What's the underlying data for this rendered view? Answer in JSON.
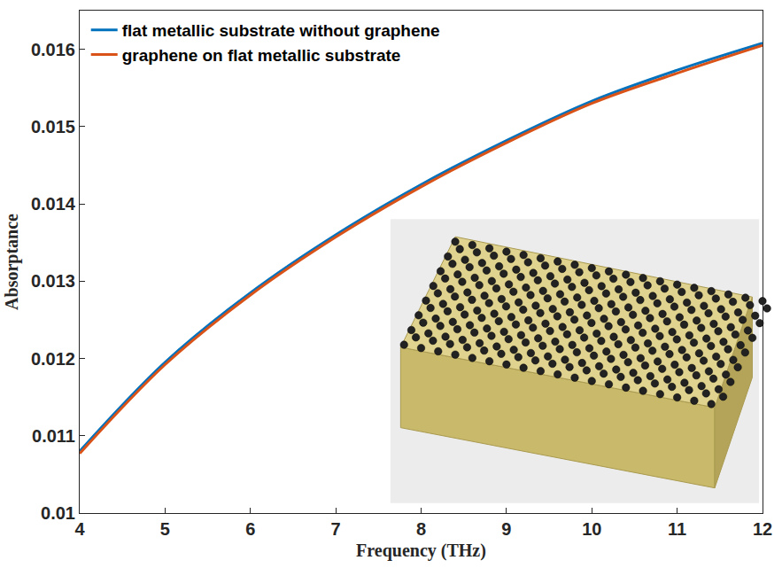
{
  "chart_data": {
    "type": "line",
    "x_label": "Frequency (THz)",
    "y_label": "Absorptance",
    "x": [
      4,
      5,
      6,
      7,
      8,
      9,
      10,
      11,
      12
    ],
    "series": [
      {
        "name": "flat metallic substrate without graphene",
        "color": "#0072bd",
        "values": [
          0.0108,
          0.01195,
          0.01285,
          0.0136,
          0.01425,
          0.01482,
          0.01533,
          0.01573,
          0.01608
        ]
      },
      {
        "name": "graphene on flat metallic substrate",
        "color": "#d95319",
        "values": [
          0.01077,
          0.01192,
          0.01282,
          0.01357,
          0.01422,
          0.01479,
          0.0153,
          0.01569,
          0.01605
        ]
      }
    ],
    "xlim": [
      4,
      12
    ],
    "ylim": [
      0.01,
      0.0165
    ],
    "xticks": [
      4,
      5,
      6,
      7,
      8,
      9,
      10,
      11,
      12
    ],
    "yticks": [
      0.01,
      0.011,
      0.012,
      0.013,
      0.014,
      0.015,
      0.016
    ],
    "grid": false,
    "legend": "top left"
  }
}
